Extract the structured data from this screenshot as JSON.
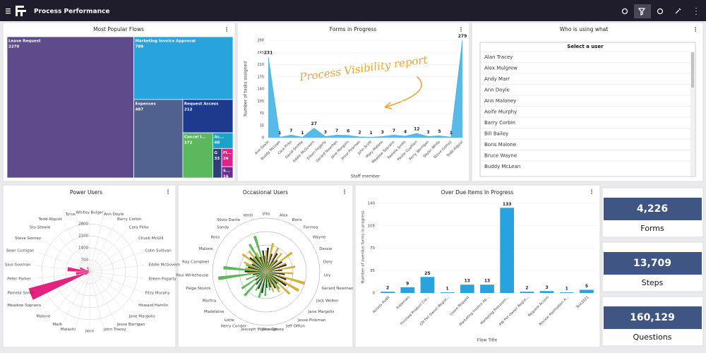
{
  "header": {
    "title": "Process Performance"
  },
  "popular_flows": {
    "type": "treemap",
    "title": "Most Popular Flows",
    "items": [
      {
        "label": "Leave Request",
        "value": 2270,
        "color": "#5e4b8b"
      },
      {
        "label": "Marketing Invoice Approval",
        "value": 789,
        "color": "#29a3dc"
      },
      {
        "label": "Expenses",
        "value": 487,
        "color": "#50608f"
      },
      {
        "label": "Request Access",
        "value": 212,
        "color": "#1e3a8c"
      },
      {
        "label": "Cancel I...",
        "value": 172,
        "color": "#5cb85c"
      },
      {
        "label": "Ac...",
        "value": 40,
        "color": "#1aa3c9"
      },
      {
        "label": "G",
        "value": 33,
        "color": "#2f3f7a"
      },
      {
        "label": "Fl...",
        "value": 26,
        "color": "#e0218a"
      },
      {
        "label": "S...",
        "value": 16,
        "color": "#6b2c91"
      }
    ]
  },
  "forms_in_progress": {
    "type": "area",
    "title": "Forms in Progress",
    "x_label": "Staff member",
    "y_label": "Number of tasks assigned",
    "annotation": "Process Visibility report",
    "color": "#47b3e6",
    "categories": [
      "Ann Doyle",
      "Buddy McLean",
      "Cara Pirko",
      "David Smithe",
      "Eddie McGovern",
      "Eileen Fogarty",
      "Gerard Newman",
      "Jane Margolis",
      "Jesse Pinkman",
      "John Scott",
      "Mary Malone",
      "Meadow Soprano",
      "Pamela Smith",
      "Paulie Gualtieri",
      "Perry Worrigan",
      "Skyler White",
      "Steve Gomez",
      "Todd Alquist"
    ],
    "values": [
      231,
      1,
      7,
      1,
      27,
      3,
      7,
      6,
      2,
      1,
      3,
      7,
      4,
      12,
      3,
      5,
      1,
      279
    ],
    "ylim": [
      0,
      280
    ],
    "yticks": [
      0,
      35,
      70,
      105,
      140,
      175,
      210,
      245,
      280
    ]
  },
  "who_is_using": {
    "title": "Who is using what",
    "list_header": "Select a user",
    "users": [
      "Alan Tracey",
      "Alex Mulgrew",
      "Andy Marr",
      "Ann Doyle",
      "Ann Maloney",
      "Aoife Murphy",
      "Barry Corbin",
      "Bill Bailey",
      "Boris Malone",
      "Bruce Wayne",
      "Buddy McLean"
    ]
  },
  "power_users": {
    "type": "polar",
    "title": "Power Users",
    "color": "#e6217f",
    "categories": [
      "Whitey Bulger",
      "Ann Doyle",
      "Barry Corbin",
      "Cara Pirko",
      "Chuck McGill",
      "Colin Sullivan",
      "Eddie McGovern",
      "Eileen Fogarty",
      "Fitzy Murphy",
      "Howard Hamlin",
      "Jane Margolis",
      "Jesse Barrigan",
      "John Tracey",
      "Jenn",
      "Malachi",
      "Mark",
      "Malone",
      "Meadow Soprano",
      "Pamela Smith",
      "Peter Parker",
      "Saul Gooman",
      "Sean Costigan",
      "Steve Gomez",
      "Stu Stewie",
      "Todd Alquist",
      "Tyrus"
    ],
    "values": [
      0,
      0,
      0,
      0,
      0,
      0,
      0,
      0,
      0,
      0,
      0,
      0,
      0,
      0,
      0,
      0,
      0,
      300,
      3700,
      800,
      1300,
      600,
      200,
      0,
      300,
      0
    ],
    "ylim": [
      0,
      3800
    ],
    "yticks": [
      700,
      1400,
      2100,
      2800
    ]
  },
  "occasional_users": {
    "type": "polar-multi",
    "title": "Occasional Users",
    "categories": [
      "Vito",
      "Alex",
      "Boris",
      "Formea",
      "Wayne",
      "Dessie",
      "Dory",
      "Ury",
      "Gerard Newman",
      "Jack Welker",
      "Jane Margolis",
      "Jesse Pinkman",
      "Jeff Offion",
      "Jane Dosea",
      "Josceph McDonagh",
      "Kerry Conder",
      "Lotte",
      "Madeleine",
      "Martha",
      "Paige Novick",
      "Paul Whitehouse",
      "Ray Campbell",
      "Malone",
      "Ross",
      "Sandy",
      "Silvio Dante",
      "Verdi"
    ],
    "series": [
      {
        "color": "#5cb85c",
        "values": [
          30,
          20,
          15,
          25,
          10,
          20,
          15,
          10,
          20,
          15,
          30,
          40,
          25,
          35,
          45,
          50,
          40,
          60,
          55,
          40,
          90,
          80,
          40,
          30,
          35,
          60,
          70
        ]
      },
      {
        "color": "#d4b13a",
        "values": [
          40,
          55,
          50,
          45,
          60,
          40,
          55,
          50,
          75,
          70,
          60,
          45,
          40,
          20,
          15,
          10,
          20,
          15,
          10,
          20,
          35,
          40,
          45,
          55,
          50,
          40,
          30
        ]
      },
      {
        "color": "#222222",
        "values": [
          45,
          35,
          40,
          30,
          35,
          40,
          30,
          35,
          40,
          45,
          30,
          35,
          30,
          30,
          40,
          35,
          30,
          25,
          20,
          25,
          40,
          35,
          30,
          40,
          35,
          30,
          40
        ]
      }
    ],
    "ylim": [
      0,
      100
    ]
  },
  "overdue": {
    "type": "bar",
    "title": "Over Due Items In Progress",
    "x_label": "Flow Title",
    "y_label": "Number of overdue forms in progress",
    "color": "#29a3e0",
    "categories": [
      "Access Audit",
      "Expenses",
      "Finished Product Cre...",
      "GN Pet Owner Regist...",
      "Leave Request",
      "Marketing Invoice Ap...",
      "Marketing Procurem...",
      "PW Pet Owner Regist...",
      "Request Access",
      "Review Application A...",
      "Test2021"
    ],
    "values": [
      2,
      9,
      25,
      1,
      13,
      13,
      133,
      2,
      3,
      1,
      5
    ],
    "ylim": [
      0,
      140
    ],
    "yticks": [
      0,
      35,
      70,
      105,
      140
    ]
  },
  "kpis": [
    {
      "value": "4,226",
      "label": "Forms"
    },
    {
      "value": "13,709",
      "label": "Steps"
    },
    {
      "value": "160,129",
      "label": "Questions"
    }
  ]
}
